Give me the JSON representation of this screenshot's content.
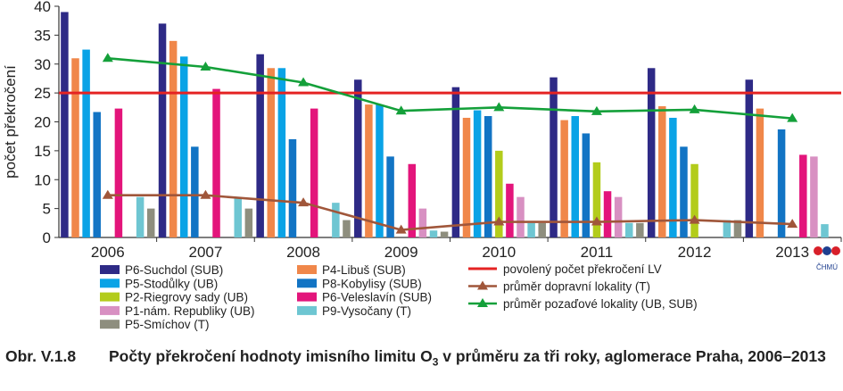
{
  "chart_data": {
    "type": "bar",
    "ylabel": "počet překročení",
    "ylim": [
      0,
      40
    ],
    "yticks": [
      0,
      5,
      10,
      15,
      20,
      25,
      30,
      35,
      40
    ],
    "grid": false,
    "categories": [
      "2006",
      "2007",
      "2008",
      "2009",
      "2010",
      "2011",
      "2012",
      "2013"
    ],
    "series": [
      {
        "name": "P6-Suchdol (SUB)",
        "color": "#2e2a86",
        "values": [
          39,
          37,
          31.7,
          27.3,
          26,
          27.7,
          29.3,
          27.3
        ]
      },
      {
        "name": "P4-Libuš (SUB)",
        "color": "#f0874a",
        "values": [
          31,
          34,
          29.3,
          23,
          20.7,
          20.3,
          22.7,
          22.3
        ]
      },
      {
        "name": "P5-Stodůlky (UB)",
        "color": "#0aa3e6",
        "values": [
          32.5,
          31.3,
          29.3,
          23,
          22,
          21,
          20.7,
          null
        ]
      },
      {
        "name": "P8-Kobylisy (SUB)",
        "color": "#1274c4",
        "values": [
          21.7,
          15.7,
          17,
          14,
          21,
          18,
          15.7,
          18.7
        ]
      },
      {
        "name": "P2-Riegrovy sady (UB)",
        "color": "#b3cc1b",
        "values": [
          null,
          null,
          null,
          null,
          15,
          13,
          12.7,
          null
        ]
      },
      {
        "name": "P6-Veleslavín (SUB)",
        "color": "#e3157b",
        "values": [
          22.3,
          25.7,
          22.3,
          12.7,
          9.3,
          8,
          null,
          14.3
        ]
      },
      {
        "name": "P1-nám. Republiky (UB)",
        "color": "#d890c2",
        "values": [
          null,
          null,
          null,
          5,
          7,
          7,
          null,
          14
        ]
      },
      {
        "name": "P9-Vysočany (T)",
        "color": "#6ec6d2",
        "values": [
          7,
          7,
          6,
          1.2,
          2.5,
          2.5,
          3,
          2.3
        ]
      },
      {
        "name": "P5-Smíchov (T)",
        "color": "#8e8e7e",
        "values": [
          5,
          5,
          3,
          1,
          2.5,
          2.5,
          3,
          null
        ]
      }
    ],
    "lines": [
      {
        "name": "povolený počet překročení LV",
        "color": "#e42323",
        "marker": "none",
        "values": [
          25,
          25,
          25,
          25,
          25,
          25,
          25,
          25
        ]
      },
      {
        "name": "průměr dopravní lokality (T)",
        "color": "#a0563a",
        "marker": "triangle",
        "values": [
          7.3,
          7.3,
          6,
          1.3,
          2.7,
          2.7,
          3,
          2.3
        ]
      },
      {
        "name": "průměr pozaďové lokality (UB, SUB)",
        "color": "#14a03a",
        "marker": "triangle",
        "values": [
          31,
          29.5,
          26.8,
          21.9,
          22.5,
          21.8,
          22.1,
          20.6
        ]
      }
    ],
    "legend_columns": [
      [
        "P6-Suchdol (SUB)",
        "P5-Stodůlky (UB)",
        "P2-Riegrovy sady (UB)",
        "P1-nám. Republiky (UB)",
        "P5-Smíchov (T)"
      ],
      [
        "P4-Libuš (SUB)",
        "P8-Kobylisy (SUB)",
        "P6-Veleslavín (SUB)",
        "P9-Vysočany (T)"
      ],
      [
        "povolený počet překročení LV",
        "průměr dopravní lokality (T)",
        "průměr pozaďové lokality (UB, SUB)"
      ]
    ],
    "legend_placement": "bottom",
    "logo_text": "ČHMÚ"
  },
  "caption": {
    "label": "Obr. V.1.8",
    "text_before": "Počty překročení hodnoty imisního limitu O",
    "subscript": "3",
    "text_after": " v průměru za tři roky, aglomerace Praha, 2006–2013"
  }
}
